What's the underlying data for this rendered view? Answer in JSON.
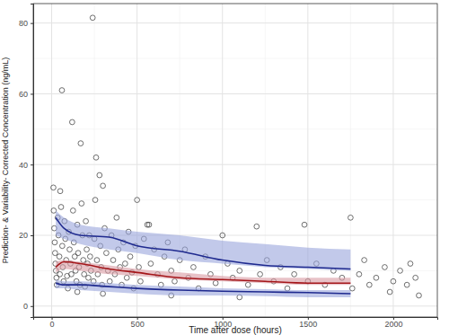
{
  "chart_data": {
    "type": "scatter",
    "xlabel": "Time after dose (hours)",
    "ylabel": "Prediction- & Variability- Corrected Concentration (ng/mL)",
    "xlim": [
      -108,
      2258
    ],
    "ylim": [
      -3.1,
      85.5
    ],
    "xticks": [
      0,
      500,
      1000,
      1500,
      2000
    ],
    "yticks": [
      0,
      20,
      40,
      60,
      80
    ],
    "grid": true,
    "series": [
      {
        "type": "scatter",
        "marker": "circle",
        "color": "#333333",
        "x": [
          10,
          12,
          15,
          18,
          20,
          22,
          25,
          28,
          30,
          35,
          40,
          45,
          48,
          50,
          55,
          60,
          62,
          65,
          70,
          75,
          80,
          85,
          90,
          95,
          100,
          105,
          110,
          115,
          120,
          125,
          130,
          135,
          140,
          145,
          150,
          155,
          160,
          165,
          170,
          175,
          180,
          185,
          190,
          195,
          200,
          205,
          210,
          215,
          220,
          225,
          230,
          240,
          245,
          250,
          255,
          260,
          265,
          270,
          280,
          285,
          290,
          295,
          300,
          310,
          320,
          330,
          340,
          350,
          360,
          370,
          380,
          390,
          400,
          410,
          420,
          430,
          440,
          450,
          460,
          470,
          480,
          490,
          500,
          510,
          520,
          540,
          560,
          570,
          580,
          600,
          620,
          640,
          660,
          680,
          700,
          720,
          750,
          780,
          800,
          830,
          860,
          900,
          930,
          960,
          1000,
          1030,
          1060,
          1100,
          1150,
          1200,
          1220,
          1260,
          1300,
          1340,
          1380,
          1420,
          1480,
          1500,
          1550,
          1600,
          1650,
          1700,
          1750,
          1760,
          1800,
          1830,
          1860,
          1900,
          1950,
          1980,
          2000,
          2040,
          2080,
          2100,
          2130,
          2150,
          700,
          300,
          150,
          1100
        ],
        "values": [
          33.5,
          27,
          22,
          18,
          15,
          12,
          10,
          8,
          6,
          25,
          20,
          14,
          9,
          32.5,
          28,
          61,
          17,
          11,
          7,
          24,
          19,
          13,
          8.5,
          5,
          21,
          16,
          12,
          9,
          52,
          27,
          18,
          14,
          10,
          7,
          23,
          15,
          11,
          6,
          46,
          29,
          20,
          13,
          9,
          5.5,
          24,
          16,
          12,
          8,
          20,
          14,
          10,
          81.5,
          7,
          19,
          30,
          42,
          13,
          9,
          37,
          17,
          11,
          6,
          34,
          22,
          15,
          10,
          7,
          20,
          13,
          9,
          25,
          16,
          11,
          6,
          18,
          12,
          8,
          21,
          14,
          9.5,
          5,
          17,
          30,
          11,
          7,
          19,
          23,
          23,
          12,
          16,
          9,
          6,
          14,
          18,
          10,
          7,
          13,
          16,
          8,
          11,
          5,
          14,
          9,
          6.5,
          20,
          12,
          8,
          10,
          6,
          22.5,
          9,
          13,
          7,
          11,
          5,
          9,
          23,
          7,
          12,
          6,
          10,
          8,
          25,
          5,
          9,
          13,
          6,
          8,
          11,
          4,
          7,
          10,
          6,
          12,
          8,
          3,
          3,
          3.5,
          4,
          2.5
        ]
      },
      {
        "type": "area",
        "color": "#9aa5dc",
        "x": [
          24,
          72,
          168,
          336,
          500,
          750,
          1000,
          1250,
          1500,
          1750
        ],
        "lower": [
          20,
          19,
          17.5,
          16,
          15,
          13,
          12,
          11,
          10.5,
          10
        ],
        "upper": [
          27,
          25,
          23,
          22,
          21,
          20,
          18.5,
          17.5,
          16.5,
          16
        ]
      },
      {
        "type": "area",
        "color": "#d99aa2",
        "x": [
          24,
          72,
          168,
          336,
          500,
          750,
          1000,
          1250,
          1500,
          1750
        ],
        "lower": [
          9.5,
          10.5,
          10,
          9,
          8.5,
          7.5,
          7,
          6.5,
          6,
          6
        ],
        "upper": [
          12.5,
          13,
          12.5,
          11.5,
          10.5,
          9.5,
          8.5,
          8,
          8,
          8
        ]
      },
      {
        "type": "area",
        "color": "#9aa5dc",
        "x": [
          24,
          72,
          168,
          336,
          500,
          750,
          1000,
          1250,
          1500,
          1750
        ],
        "lower": [
          5,
          5,
          4.5,
          4,
          3.5,
          3,
          3,
          2.8,
          2.5,
          2.5
        ],
        "upper": [
          7.5,
          7,
          7,
          6.5,
          6,
          5.5,
          5,
          4.8,
          4.5,
          4.5
        ]
      },
      {
        "type": "line",
        "color": "#1f2a8f",
        "x": [
          24,
          72,
          168,
          336,
          500,
          750,
          1000,
          1250,
          1500,
          1750
        ],
        "values": [
          25,
          22,
          20,
          19.5,
          17,
          15.5,
          13,
          11.5,
          11,
          10.5
        ]
      },
      {
        "type": "line",
        "color": "#a4161a",
        "x": [
          24,
          72,
          168,
          336,
          500,
          750,
          1000,
          1250,
          1500,
          1750
        ],
        "values": [
          11,
          12.5,
          12,
          10.5,
          9.5,
          8,
          7.5,
          7,
          6.5,
          6.5
        ]
      },
      {
        "type": "line",
        "color": "#1f2a8f",
        "x": [
          24,
          72,
          168,
          336,
          500,
          750,
          1000,
          1250,
          1500,
          1750
        ],
        "values": [
          6.5,
          6,
          6,
          5.5,
          5,
          4.5,
          4.2,
          4,
          3.8,
          3.5
        ]
      }
    ]
  }
}
